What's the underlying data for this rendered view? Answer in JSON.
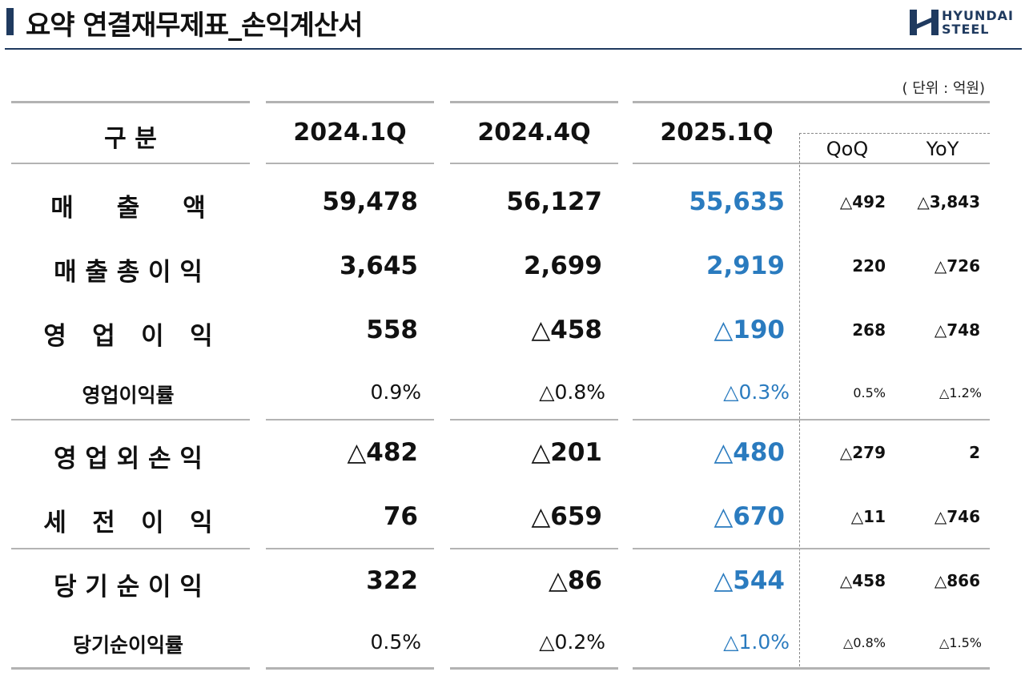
{
  "title": "요약 연결재무제표_손익계산서",
  "logo": {
    "line1": "HYUNDAI",
    "line2": "STEEL",
    "color": "#1f3a5f"
  },
  "unit": "( 단위 : 억원)",
  "accent_color": "#2a7bbf",
  "headers": {
    "category": "구 분",
    "col1": "2024.1Q",
    "col2": "2024.4Q",
    "col3": "2025.1Q",
    "qoq": "QoQ",
    "yoy": "YoY"
  },
  "rows": [
    {
      "label": "매     출     액",
      "v1": "59,478",
      "v2": "56,127",
      "v3": "55,635",
      "qoq": "△492",
      "yoy": "△3,843"
    },
    {
      "label": "매 출 총 이 익",
      "v1": "3,645",
      "v2": "2,699",
      "v3": "2,919",
      "qoq": "220",
      "yoy": "△726"
    },
    {
      "label": "영   업   이   익",
      "v1": "558",
      "v2": "△458",
      "v3": "△190",
      "qoq": "268",
      "yoy": "△748"
    },
    {
      "label": "영업이익률",
      "v1": "0.9%",
      "v2": "△0.8%",
      "v3": "△0.3%",
      "qoq": "0.5%",
      "yoy": "△1.2%"
    },
    {
      "label": "영 업 외 손 익",
      "v1": "△482",
      "v2": "△201",
      "v3": "△480",
      "qoq": "△279",
      "yoy": "2"
    },
    {
      "label": "세   전   이   익",
      "v1": "76",
      "v2": "△659",
      "v3": "△670",
      "qoq": "△11",
      "yoy": "△746"
    },
    {
      "label": "당 기 순 이 익",
      "v1": "322",
      "v2": "△86",
      "v3": "△544",
      "qoq": "△458",
      "yoy": "△866"
    },
    {
      "label": "당기순이익률",
      "v1": "0.5%",
      "v2": "△0.2%",
      "v3": "△1.0%",
      "qoq": "△0.8%",
      "yoy": "△1.5%"
    }
  ]
}
